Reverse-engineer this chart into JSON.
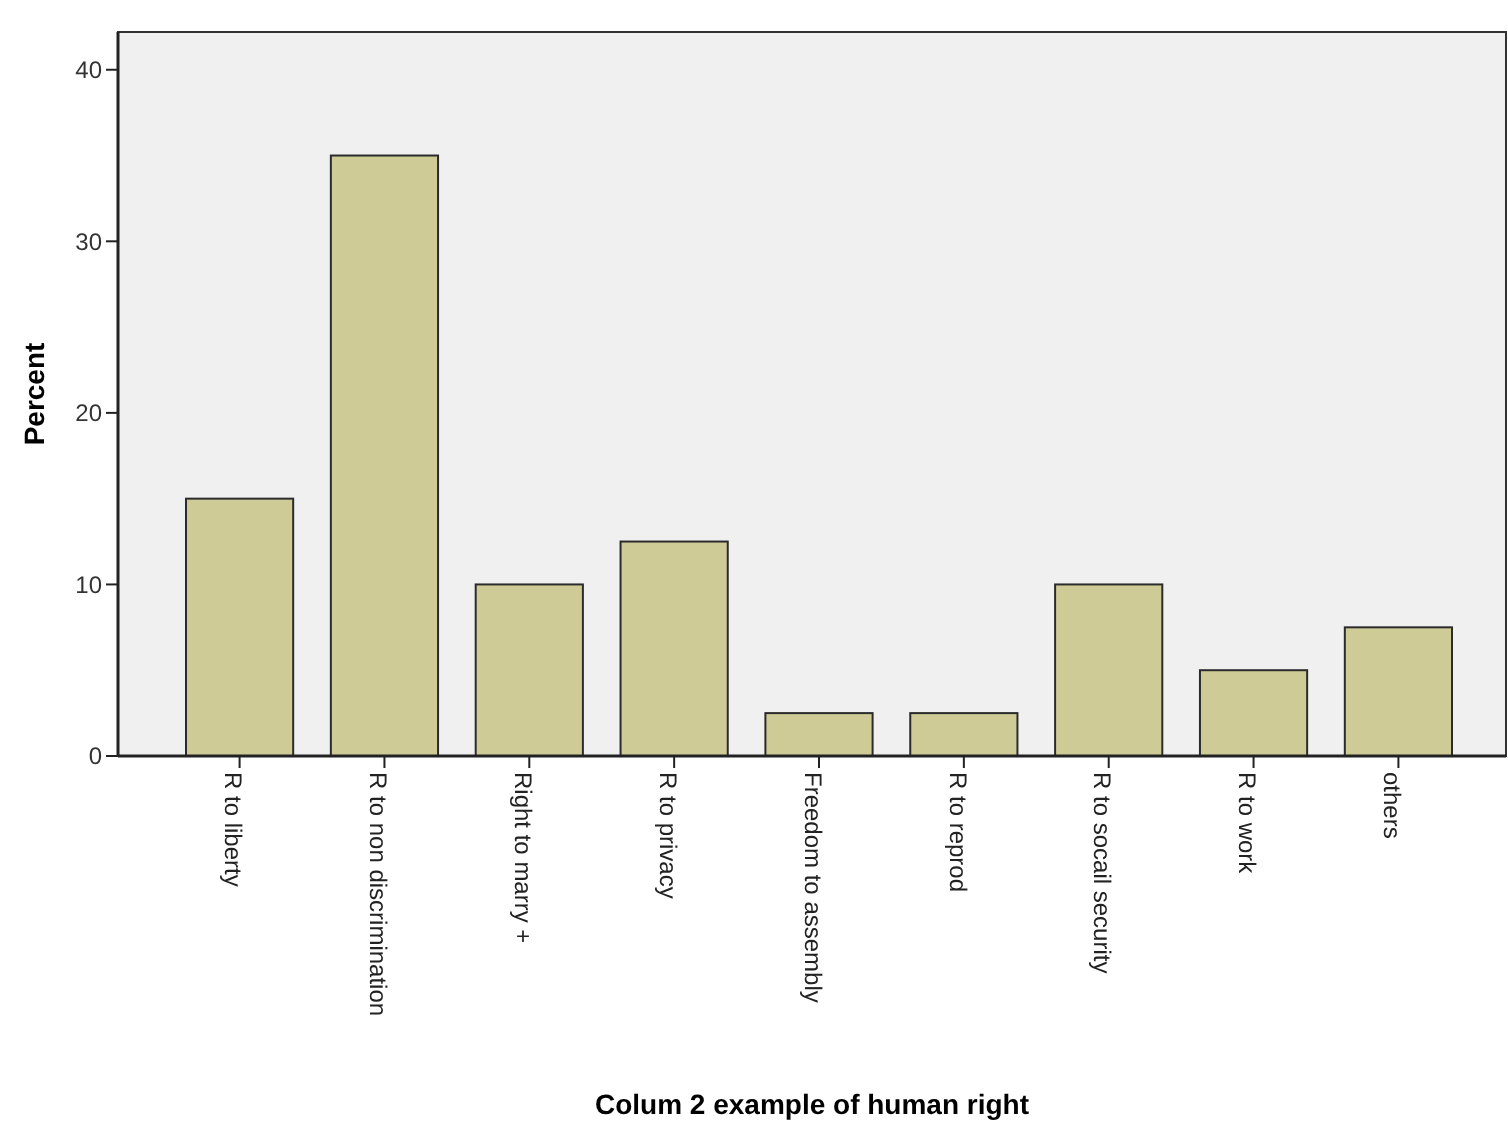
{
  "chart_data": {
    "type": "bar",
    "xlabel": "Colum 2 example of human right",
    "ylabel": "Percent",
    "categories": [
      "R to liberty",
      "R to non discrimination",
      "Right to marry +",
      "R to privacy",
      "Freedom to assembly",
      "R to reprod",
      "R to socail security",
      "R to work",
      "others"
    ],
    "values": [
      15,
      35,
      10,
      12.5,
      2.5,
      2.5,
      10,
      5,
      7.5
    ],
    "color": "#cfcb97",
    "ylim": [
      0,
      42.2
    ],
    "yticks": [
      0,
      10,
      20,
      30,
      40
    ],
    "grid": false
  }
}
